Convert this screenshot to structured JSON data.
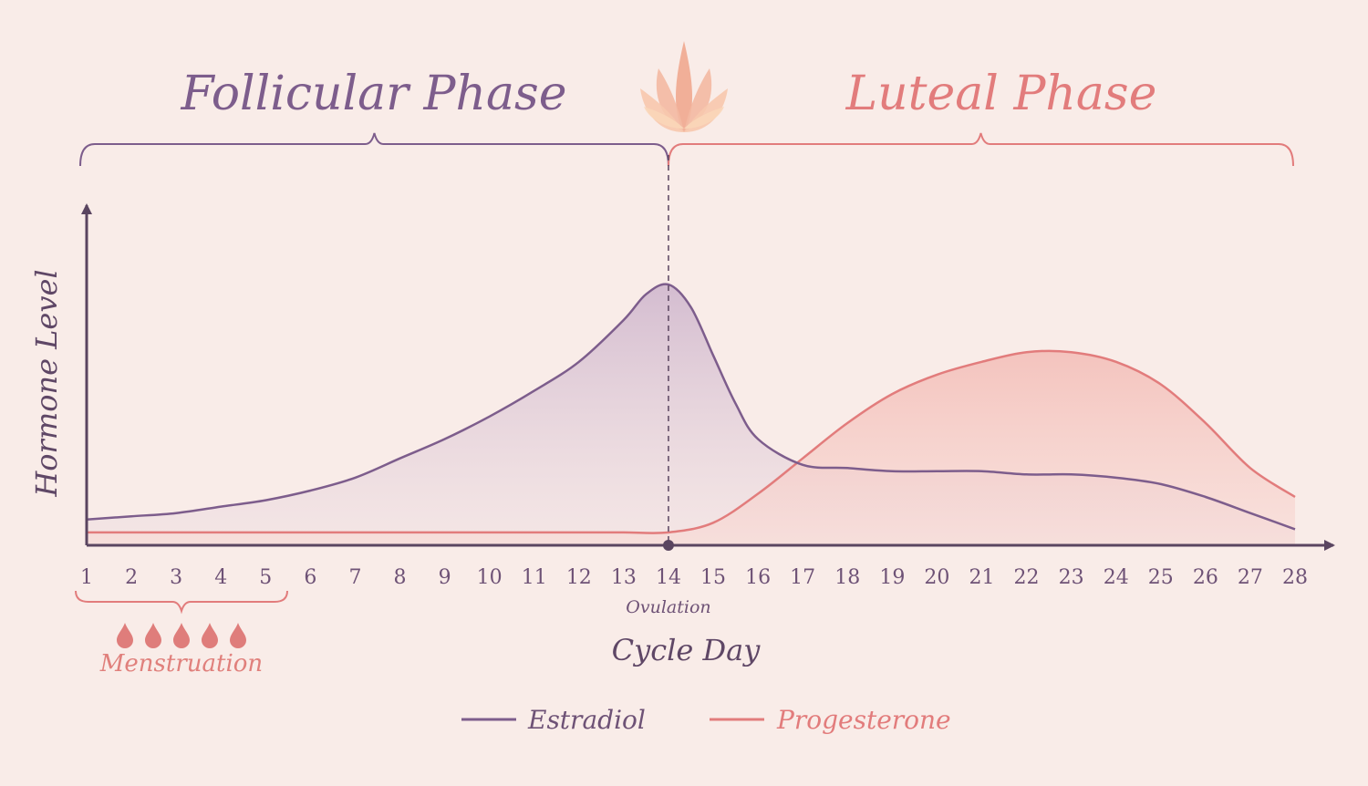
{
  "chart_data": {
    "type": "area",
    "title": "",
    "xlabel": "Cycle Day",
    "ylabel": "Hormone Level",
    "xlim": [
      1,
      28
    ],
    "ylim": [
      0,
      1
    ],
    "x_ticks": [
      1,
      2,
      3,
      4,
      5,
      6,
      7,
      8,
      9,
      10,
      11,
      12,
      13,
      14,
      15,
      16,
      17,
      18,
      19,
      20,
      21,
      22,
      23,
      24,
      25,
      26,
      27,
      28
    ],
    "phases": [
      {
        "name": "Follicular Phase",
        "start_day": 1,
        "end_day": 14
      },
      {
        "name": "Luteal Phase",
        "start_day": 14,
        "end_day": 28
      }
    ],
    "annotations": {
      "ovulation": {
        "label": "Ovulation",
        "day": 14
      },
      "menstruation": {
        "label": "Menstruation",
        "start_day": 1,
        "end_day": 5
      }
    },
    "series": [
      {
        "name": "Estradiol",
        "color": "#7d5d8c",
        "fill": "#d8c3d6",
        "x": [
          1,
          2,
          3,
          4,
          5,
          6,
          7,
          8,
          9,
          10,
          11,
          12,
          13,
          13.5,
          14,
          14.5,
          15,
          15.5,
          16,
          17,
          18,
          19,
          20,
          21,
          22,
          23,
          24,
          25,
          26,
          27,
          28
        ],
        "values": [
          0.08,
          0.09,
          0.1,
          0.12,
          0.14,
          0.17,
          0.21,
          0.27,
          0.33,
          0.4,
          0.48,
          0.57,
          0.7,
          0.78,
          0.81,
          0.74,
          0.59,
          0.44,
          0.33,
          0.25,
          0.24,
          0.23,
          0.23,
          0.23,
          0.22,
          0.22,
          0.21,
          0.19,
          0.15,
          0.1,
          0.05
        ]
      },
      {
        "name": "Progesterone",
        "color": "#e27c7c",
        "fill": "#f4c7c2",
        "x": [
          1,
          2,
          3,
          4,
          5,
          6,
          7,
          8,
          9,
          10,
          11,
          12,
          13,
          14,
          15,
          16,
          17,
          18,
          19,
          20,
          21,
          22,
          23,
          24,
          25,
          26,
          27,
          28
        ],
        "values": [
          0.04,
          0.04,
          0.04,
          0.04,
          0.04,
          0.04,
          0.04,
          0.04,
          0.04,
          0.04,
          0.04,
          0.04,
          0.04,
          0.04,
          0.07,
          0.16,
          0.27,
          0.38,
          0.47,
          0.53,
          0.57,
          0.6,
          0.6,
          0.57,
          0.5,
          0.38,
          0.24,
          0.15
        ]
      }
    ],
    "legend_placement": "bottom",
    "grid": false
  },
  "legend": {
    "estradiol": "Estradiol",
    "progesterone": "Progesterone"
  },
  "icons": {
    "top": "lotus-icon",
    "menstruation": "blood-drop-icon"
  },
  "colors": {
    "background": "#f9ece8",
    "axis": "#5a4560",
    "follicular": "#7d5d8c",
    "luteal": "#e27c7c"
  }
}
